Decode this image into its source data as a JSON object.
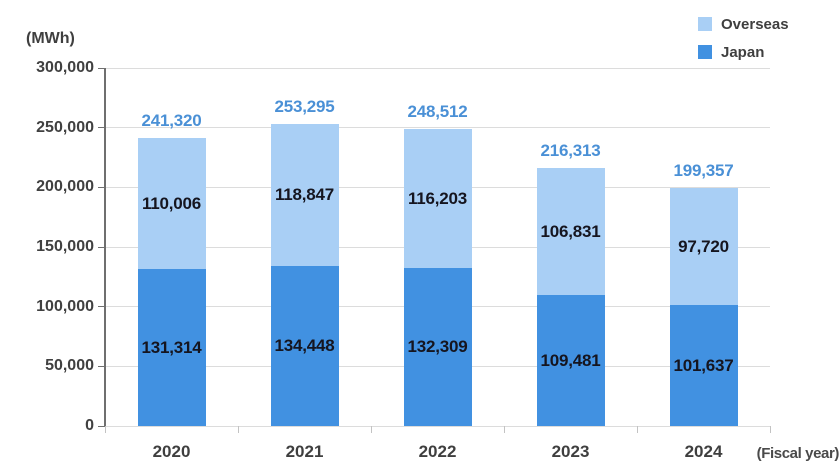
{
  "chart_data": {
    "type": "bar",
    "stacked": true,
    "unit_label": "(MWh)",
    "xlabel": "(Fiscal year)",
    "categories": [
      "2020",
      "2021",
      "2022",
      "2023",
      "2024"
    ],
    "series": [
      {
        "name": "Japan",
        "color": "#4191E1",
        "values": [
          131314,
          134448,
          132309,
          109481,
          101637
        ]
      },
      {
        "name": "Overseas",
        "color": "#A9CFF5",
        "values": [
          110006,
          118847,
          116203,
          106831,
          97720
        ]
      }
    ],
    "totals": [
      241320,
      253295,
      248512,
      216313,
      199357
    ],
    "legend_items": [
      {
        "label": "Overseas",
        "color": "#A9CFF5"
      },
      {
        "label": "Japan",
        "color": "#4191E1"
      }
    ],
    "ylim": [
      0,
      300000
    ],
    "ytick_step": 50000,
    "ytick_labels": [
      "0",
      "50,000",
      "100,000",
      "150,000",
      "200,000",
      "250,000",
      "300,000"
    ],
    "grid": true,
    "legend_position": "top-right",
    "colors": {
      "total_label": "#4a90d6",
      "segment_label": "#15151f",
      "axis_text": "#404040",
      "gridline": "#dcdcdc",
      "y_axis_line": "#6f6f6f"
    }
  }
}
